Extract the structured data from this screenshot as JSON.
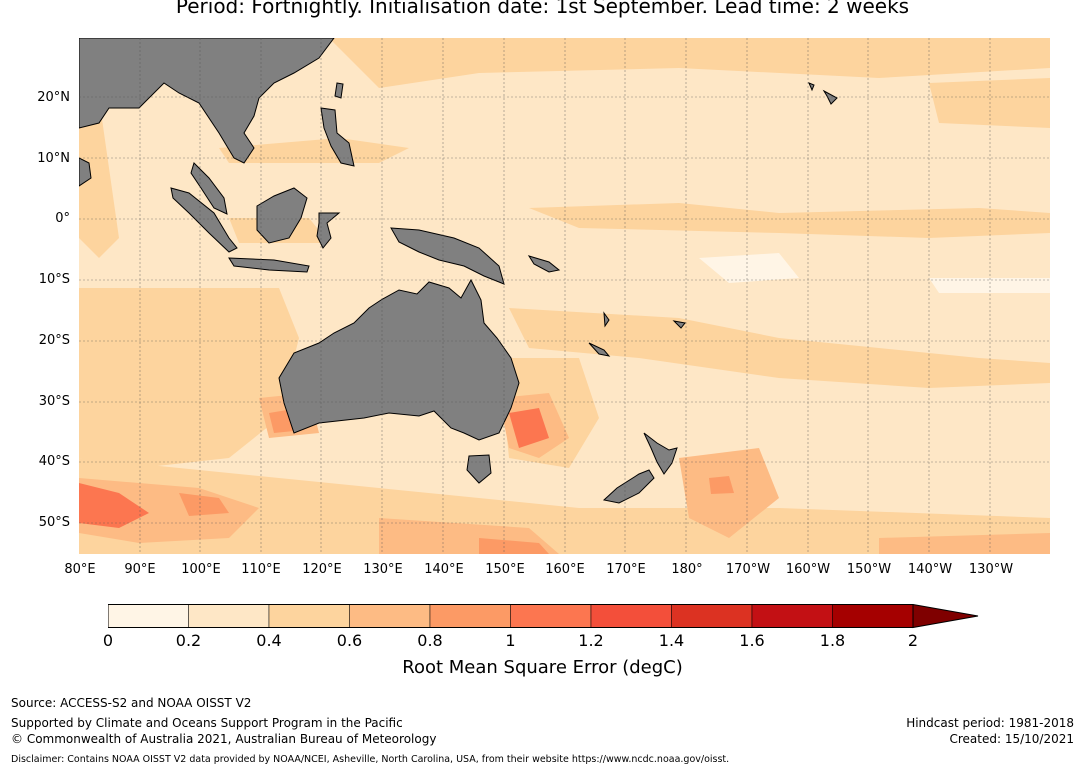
{
  "title": "Period: Fortnightly. Initialisation date: 1st September. Lead time: 2 weeks",
  "map": {
    "lat_labels": [
      "20°N",
      "10°N",
      "0°",
      "10°S",
      "20°S",
      "30°S",
      "40°S",
      "50°S"
    ],
    "lon_labels": [
      "80°E",
      "90°E",
      "100°E",
      "110°E",
      "120°E",
      "130°E",
      "140°E",
      "150°E",
      "160°E",
      "170°E",
      "180°",
      "170°W",
      "160°W",
      "150°W",
      "140°W",
      "130°W"
    ],
    "colors": {
      "land": "#808080",
      "ocean_base": "#fee7c6",
      "grid": "#666666"
    }
  },
  "colorbar": {
    "title": "Root Mean Square Error (degC)",
    "ticks": [
      "0",
      "0.2",
      "0.4",
      "0.6",
      "0.8",
      "1",
      "1.2",
      "1.4",
      "1.6",
      "1.8",
      "2"
    ],
    "colors": [
      "#fff5e6",
      "#fee7c6",
      "#fdd49e",
      "#fdbb84",
      "#fc9a65",
      "#fc7650",
      "#f34f3a",
      "#dc3222",
      "#c31014",
      "#a50000",
      "#7f0000"
    ],
    "extend": "max"
  },
  "footer": {
    "source": "Source: ACCESS-S2 and NOAA OISST V2",
    "support": "Supported by Climate and Oceans Support Program in the Pacific",
    "copyright": "© Commonwealth of Australia 2021, Australian Bureau of Meteorology",
    "hindcast": "Hindcast period: 1981-2018",
    "created": "Created: 15/10/2021",
    "disclaimer": "Disclaimer: Contains NOAA OISST V2 data provided by NOAA/NCEI, Asheville, North Carolina, USA, from their website https://www.ncdc.noaa.gov/oisst."
  }
}
